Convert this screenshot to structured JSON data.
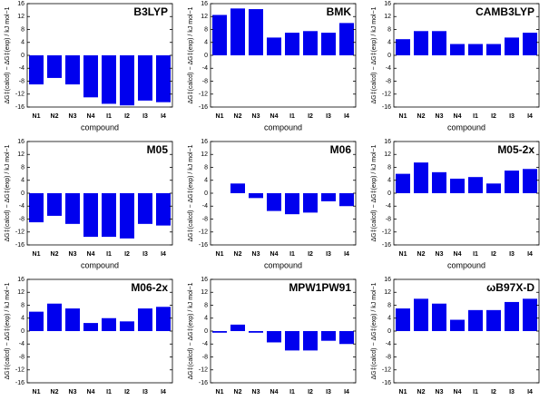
{
  "chart_data": [
    {
      "type": "bar",
      "title": "B3LYP",
      "categories": [
        "N1",
        "N2",
        "N3",
        "N4",
        "I1",
        "I2",
        "I3",
        "I4"
      ],
      "values": [
        -9,
        -7,
        -9,
        -13,
        -15,
        -15.5,
        -14,
        -14.5
      ],
      "color": "#0000ee",
      "ylim": [
        -16,
        16
      ],
      "yticks": [
        -16,
        -12,
        -8,
        -4,
        0,
        4,
        8,
        12,
        16
      ],
      "ylabel": "ΔG‡(calcd) − ΔG‡(exp) / kJ mol−1",
      "xlabel": "compound"
    },
    {
      "type": "bar",
      "title": "BMK",
      "categories": [
        "N1",
        "N2",
        "N3",
        "N4",
        "I1",
        "I2",
        "I3",
        "I4"
      ],
      "values": [
        12.5,
        14.5,
        14.3,
        5.5,
        7,
        7.5,
        7,
        10
      ],
      "color": "#0000ee",
      "ylim": [
        -16,
        16
      ],
      "yticks": [
        -16,
        -12,
        -8,
        -4,
        0,
        4,
        8,
        12,
        16
      ],
      "ylabel": "ΔG‡(calcd) − ΔG‡(exp) / kJ mol−1",
      "xlabel": "compound"
    },
    {
      "type": "bar",
      "title": "CAMB3LYP",
      "categories": [
        "N1",
        "N2",
        "N3",
        "N4",
        "I1",
        "I2",
        "I3",
        "I4"
      ],
      "values": [
        5,
        7.5,
        7.5,
        3.5,
        3.5,
        3.5,
        5.5,
        7
      ],
      "color": "#0000ee",
      "ylim": [
        -16,
        16
      ],
      "yticks": [
        -16,
        -12,
        -8,
        -4,
        0,
        4,
        8,
        12,
        16
      ],
      "ylabel": "ΔG‡(calcd) − ΔG‡(exp) / kJ mol−1",
      "xlabel": "compound"
    },
    {
      "type": "bar",
      "title": "M05",
      "categories": [
        "N1",
        "N2",
        "N3",
        "N4",
        "I1",
        "I2",
        "I3",
        "I4"
      ],
      "values": [
        -9,
        -7,
        -9.5,
        -13.5,
        -13.5,
        -14,
        -9.5,
        -10
      ],
      "color": "#0000ee",
      "ylim": [
        -16,
        16
      ],
      "yticks": [
        -16,
        -12,
        -8,
        -4,
        0,
        4,
        8,
        12,
        16
      ],
      "ylabel": "ΔG‡(calcd) − ΔG‡(exp) / kJ mol−1",
      "xlabel": "compound"
    },
    {
      "type": "bar",
      "title": "M06",
      "categories": [
        "N1",
        "N2",
        "N3",
        "N4",
        "I1",
        "I2",
        "I3",
        "I4"
      ],
      "values": [
        0,
        3,
        -1.5,
        -5.5,
        -6.5,
        -6,
        -2.5,
        -4
      ],
      "color": "#0000ee",
      "ylim": [
        -16,
        16
      ],
      "yticks": [
        -16,
        -12,
        -8,
        -4,
        0,
        4,
        8,
        12,
        16
      ],
      "ylabel": "ΔG‡(calcd) − ΔG‡(exp) / kJ mol−1",
      "xlabel": "compound"
    },
    {
      "type": "bar",
      "title": "M05-2x",
      "categories": [
        "N1",
        "N2",
        "N3",
        "N4",
        "I1",
        "I2",
        "I3",
        "I4"
      ],
      "values": [
        6,
        9.5,
        6.5,
        4.5,
        5,
        3,
        7,
        7.5
      ],
      "color": "#0000ee",
      "ylim": [
        -16,
        16
      ],
      "yticks": [
        -16,
        -12,
        -8,
        -4,
        0,
        4,
        8,
        12,
        16
      ],
      "ylabel": "ΔG‡(calcd) − ΔG‡(exp) / kJ mol−1",
      "xlabel": "compound"
    },
    {
      "type": "bar",
      "title": "M06-2x",
      "categories": [
        "N1",
        "N2",
        "N3",
        "N4",
        "I1",
        "I2",
        "I3",
        "I4"
      ],
      "values": [
        6,
        8.5,
        7,
        2.5,
        4,
        3,
        7,
        7.5
      ],
      "color": "#0000ee",
      "ylim": [
        -16,
        16
      ],
      "yticks": [
        -16,
        -12,
        -8,
        -4,
        0,
        4,
        8,
        12,
        16
      ],
      "ylabel": "ΔG‡(calcd) − ΔG‡(exp) / kJ mol−1"
    },
    {
      "type": "bar",
      "title": "MPW1PW91",
      "categories": [
        "N1",
        "N2",
        "N3",
        "N4",
        "I1",
        "I2",
        "I3",
        "I4"
      ],
      "values": [
        -0.5,
        2,
        -0.5,
        -3.5,
        -6,
        -6,
        -3,
        -4
      ],
      "color": "#0000ee",
      "ylim": [
        -16,
        16
      ],
      "yticks": [
        -16,
        -12,
        -8,
        -4,
        0,
        4,
        8,
        12,
        16
      ],
      "ylabel": "ΔG‡(calcd) − ΔG‡(exp) / kJ mol−1"
    },
    {
      "type": "bar",
      "title": "ωB97X-D",
      "categories": [
        "N1",
        "N2",
        "N3",
        "N4",
        "I1",
        "I2",
        "I3",
        "I4"
      ],
      "values": [
        7,
        10,
        8.5,
        3.5,
        6.5,
        6.5,
        9,
        10
      ],
      "color": "#0000ee",
      "ylim": [
        -16,
        16
      ],
      "yticks": [
        -16,
        -12,
        -8,
        -4,
        0,
        4,
        8,
        12,
        16
      ],
      "ylabel": "ΔG‡(calcd) − ΔG‡(exp) / kJ mol−1"
    }
  ]
}
